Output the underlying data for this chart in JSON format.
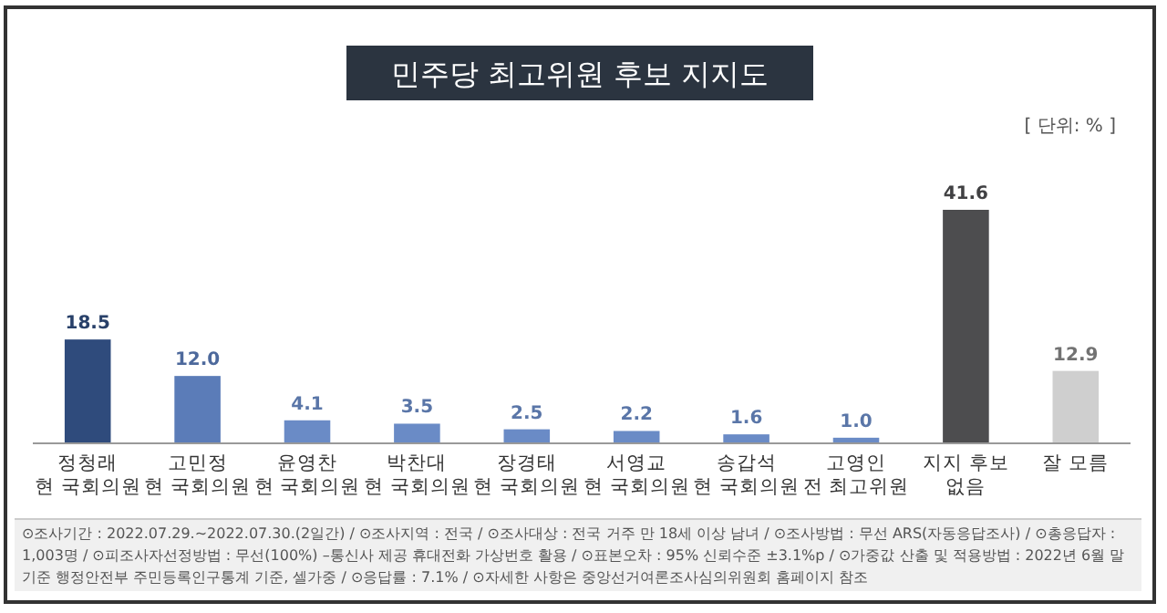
{
  "chart_data": {
    "type": "bar",
    "title": "민주당 최고위원 후보 지지도",
    "categories": [
      "정청래\n현 국회의원",
      "고민정\n현 국회의원",
      "윤영찬\n현 국회의원",
      "박찬대\n현 국회의원",
      "장경태\n현 국회의원",
      "서영교\n현 국회의원",
      "송갑석\n현 국회의원",
      "고영인\n전 최고위원",
      "지지 후보\n없음",
      "잘 모름"
    ],
    "values": [
      18.5,
      12.0,
      4.1,
      3.5,
      2.5,
      2.2,
      1.6,
      1.0,
      41.6,
      12.9
    ],
    "value_labels": [
      "18.5",
      "12.0",
      "4.1",
      "3.5",
      "2.5",
      "2.2",
      "1.6",
      "1.0",
      "41.6",
      "12.9"
    ],
    "colors": [
      "#2f4b7c",
      "#5b7cb8",
      "#6a8bc6",
      "#6a8bc6",
      "#6a8bc6",
      "#6a8bc6",
      "#6a8bc6",
      "#6a8bc6",
      "#4d4d4f",
      "#cfcfcf"
    ],
    "annotations": [
      "[ 단위: % ]",
      "⊙조사기간 : 2022.07.29.~2022.07.30.(2일간) / ⊙조사지역 : 전국 / ⊙조사대상 : 전국 거주 만 18세 이상 남녀 / ⊙조사방법 : 무선 ARS(자동응답조사) / ⊙총응답자 : 1,003명 / ⊙피조사자선정방법 : 무선(100%) –통신사 제공 휴대전화 가상번호 활용 / ⊙표본오차 : 95% 신뢰수준 ±3.1%p / ⊙가중값 산출 및 적용방법 : 2022년 6월 말 기준 행정안전부 주민등록인구통계 기준, 셀가중 / ⊙응답률 : 7.1% / ⊙자세한 사항은 중앙선거여론조사심의위원회 홈페이지 참조"
    ]
  }
}
